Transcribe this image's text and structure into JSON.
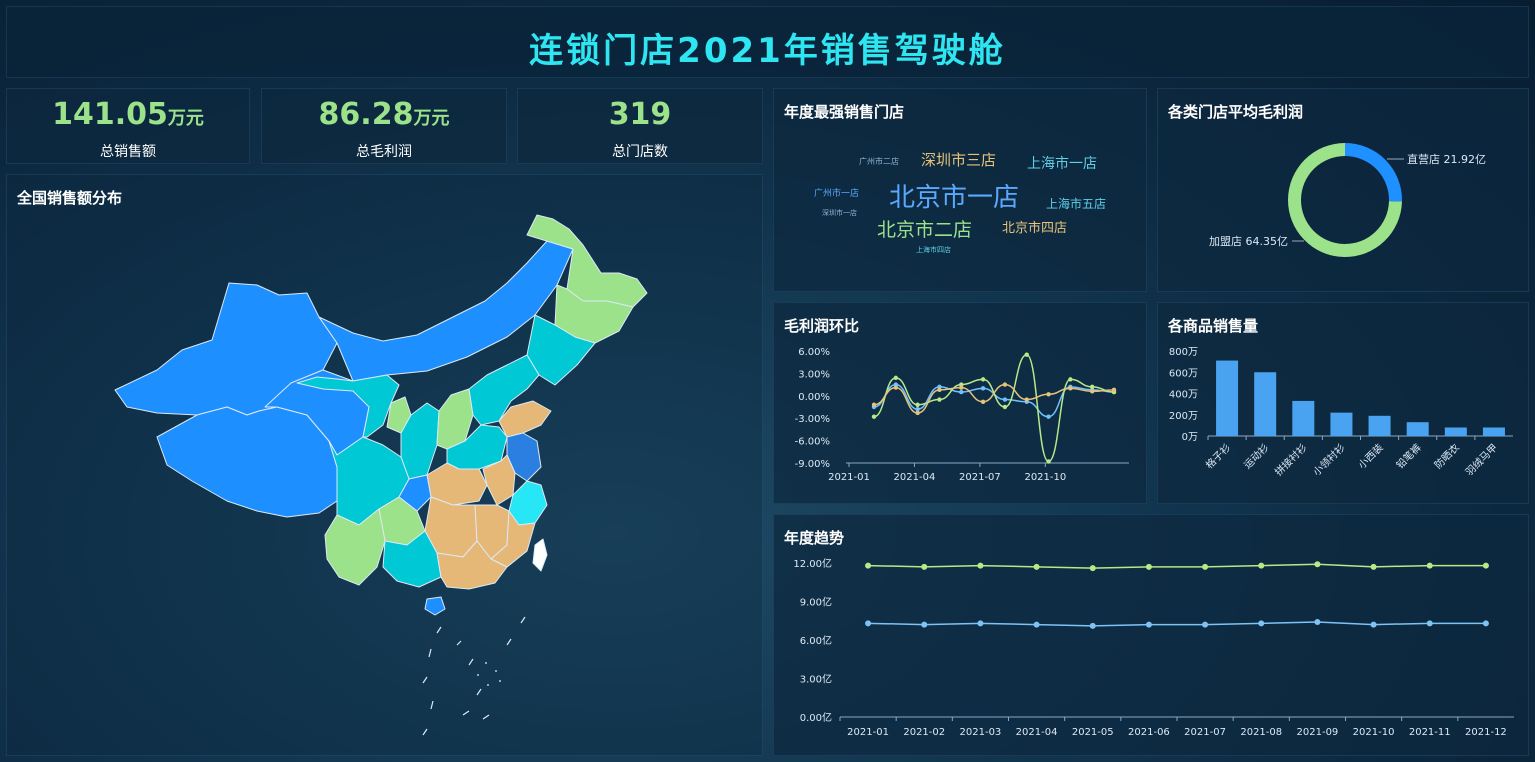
{
  "header": {
    "title": "连锁门店2021年销售驾驶舱"
  },
  "kpis": [
    {
      "value": "141.05",
      "unit": "万元",
      "label": "总销售额"
    },
    {
      "value": "86.28",
      "unit": "万元",
      "label": "总毛利润"
    },
    {
      "value": "319",
      "unit": "",
      "label": "总门店数"
    }
  ],
  "map_panel": {
    "title": "全国销售额分布"
  },
  "wordcloud": {
    "title": "年度最强销售门店",
    "words": [
      {
        "text": "北京市一店",
        "color": "#5aa9ff"
      },
      {
        "text": "深圳市三店",
        "color": "#e6c27a"
      },
      {
        "text": "上海市一店",
        "color": "#5fd0e8"
      },
      {
        "text": "北京市二店",
        "color": "#9be28a"
      },
      {
        "text": "北京市四店",
        "color": "#e6c27a"
      },
      {
        "text": "上海市五店",
        "color": "#5fd0e8"
      },
      {
        "text": "广州市二店",
        "color": "#8fb4d6"
      },
      {
        "text": "广州市一店",
        "color": "#5aa9ff"
      },
      {
        "text": "深圳市一店",
        "color": "#8fb4d6"
      },
      {
        "text": "上海市四店",
        "color": "#5fd0e8"
      }
    ]
  },
  "donut": {
    "title": "各类门店平均毛利润",
    "label_direct": "直营店 21.92亿",
    "label_franchise": "加盟店 64.35亿"
  },
  "line_panel": {
    "title": "毛利润环比"
  },
  "bar_panel": {
    "title": "各商品销售量"
  },
  "trend_panel": {
    "title": "年度趋势"
  },
  "chart_data": [
    {
      "id": "donut",
      "type": "pie",
      "title": "各类门店平均毛利润",
      "categories": [
        "直营店",
        "加盟店"
      ],
      "values": [
        21.92,
        64.35
      ],
      "colors": [
        "#1e90ff",
        "#9be28a"
      ]
    },
    {
      "id": "mom",
      "type": "line",
      "title": "毛利润环比",
      "x": [
        "2021-01",
        "2021-02",
        "2021-03",
        "2021-04",
        "2021-05",
        "2021-06",
        "2021-07",
        "2021-08",
        "2021-09",
        "2021-10",
        "2021-11",
        "2021-12"
      ],
      "x_ticks": [
        "2021-01",
        "2021-04",
        "2021-07",
        "2021-10"
      ],
      "y_ticks": [
        "6.00%",
        "3.00%",
        "0.00%",
        "-3.00%",
        "-6.00%",
        "-9.00%"
      ],
      "ylim": [
        -9,
        6
      ],
      "series": [
        {
          "values": [
            -1.5,
            1.5,
            -1.8,
            1.2,
            0.5,
            1.0,
            -0.5,
            -0.8,
            -2.8,
            1.2,
            0.8,
            0.5
          ],
          "color": "#6fc2ff"
        },
        {
          "values": [
            -2.8,
            2.4,
            -1.2,
            -0.5,
            1.5,
            2.2,
            -1.5,
            5.5,
            -8.8,
            2.2,
            1.2,
            0.5
          ],
          "color": "#b8e986"
        },
        {
          "values": [
            -1.2,
            1.1,
            -2.3,
            0.8,
            1.1,
            -0.8,
            1.5,
            -0.5,
            0.2,
            1.0,
            0.6,
            0.8
          ],
          "color": "#e6c27a"
        }
      ]
    },
    {
      "id": "goods",
      "type": "bar",
      "title": "各商品销售量",
      "categories": [
        "格子衫",
        "运动衫",
        "拼接衬衫",
        "小领衬衫",
        "小西装",
        "铅笔裤",
        "防晒衣",
        "羽绒马甲"
      ],
      "values": [
        710,
        600,
        330,
        220,
        190,
        130,
        80,
        80
      ],
      "y_ticks": [
        "800万",
        "600万",
        "400万",
        "200万",
        "0万"
      ],
      "ylim": [
        0,
        800
      ],
      "color": "#4aa3f0"
    },
    {
      "id": "trend",
      "type": "line",
      "title": "年度趋势",
      "x": [
        "2021-01",
        "2021-02",
        "2021-03",
        "2021-04",
        "2021-05",
        "2021-06",
        "2021-07",
        "2021-08",
        "2021-09",
        "2021-10",
        "2021-11",
        "2021-12"
      ],
      "y_ticks": [
        "12.00亿",
        "9.00亿",
        "6.00亿",
        "3.00亿",
        "0.00亿"
      ],
      "ylim": [
        0,
        12
      ],
      "series": [
        {
          "values": [
            11.8,
            11.7,
            11.8,
            11.7,
            11.6,
            11.7,
            11.7,
            11.8,
            11.9,
            11.7,
            11.8,
            11.8
          ],
          "color": "#b8e986"
        },
        {
          "values": [
            7.3,
            7.2,
            7.3,
            7.2,
            7.1,
            7.2,
            7.2,
            7.3,
            7.4,
            7.2,
            7.3,
            7.3
          ],
          "color": "#7ec3f5"
        }
      ]
    }
  ]
}
